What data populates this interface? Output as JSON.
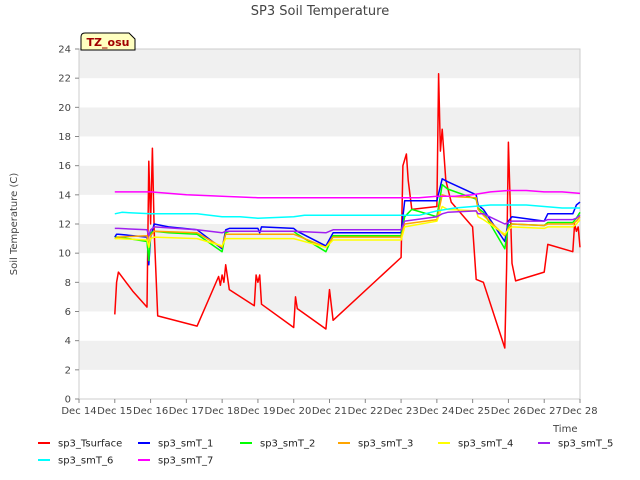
{
  "chart_data": {
    "type": "line",
    "title": "SP3 Soil Temperature",
    "ylabel": "Soil Temperature (C)",
    "xlabel": "Time",
    "badge": "TZ_osu",
    "ylim": [
      0,
      24
    ],
    "yticks": [
      0,
      2,
      4,
      6,
      8,
      10,
      12,
      14,
      16,
      18,
      20,
      22,
      24
    ],
    "xlim": [
      14,
      28
    ],
    "xticks": [
      {
        "v": 14,
        "label": "Dec 14"
      },
      {
        "v": 15,
        "label": "Dec 15"
      },
      {
        "v": 16,
        "label": "Dec 16"
      },
      {
        "v": 17,
        "label": "Dec 17"
      },
      {
        "v": 18,
        "label": "Dec 18"
      },
      {
        "v": 19,
        "label": "Dec 19"
      },
      {
        "v": 20,
        "label": "Dec 20"
      },
      {
        "v": 21,
        "label": "Dec 21"
      },
      {
        "v": 22,
        "label": "Dec 22"
      },
      {
        "v": 23,
        "label": "Dec 23"
      },
      {
        "v": 24,
        "label": "Dec 24"
      },
      {
        "v": 25,
        "label": "Dec 25"
      },
      {
        "v": 26,
        "label": "Dec 26"
      },
      {
        "v": 27,
        "label": "Dec 27"
      },
      {
        "v": 28,
        "label": "Dec 28"
      }
    ],
    "grid": "horizontal bands",
    "legend_position": "bottom",
    "series": [
      {
        "name": "sp3_Tsurface",
        "color": "#ff0000",
        "points": [
          [
            15.0,
            5.8
          ],
          [
            15.05,
            8.0
          ],
          [
            15.1,
            8.7
          ],
          [
            15.5,
            7.4
          ],
          [
            15.9,
            6.3
          ],
          [
            15.95,
            16.3
          ],
          [
            16.0,
            12.0
          ],
          [
            16.05,
            17.2
          ],
          [
            16.1,
            11.5
          ],
          [
            16.2,
            5.7
          ],
          [
            17.3,
            5.0
          ],
          [
            17.9,
            8.4
          ],
          [
            17.95,
            7.8
          ],
          [
            18.0,
            8.5
          ],
          [
            18.05,
            8.0
          ],
          [
            18.1,
            9.2
          ],
          [
            18.2,
            7.5
          ],
          [
            18.9,
            6.4
          ],
          [
            18.95,
            8.5
          ],
          [
            19.0,
            8.0
          ],
          [
            19.05,
            8.5
          ],
          [
            19.1,
            6.5
          ],
          [
            20.0,
            4.9
          ],
          [
            20.05,
            7.0
          ],
          [
            20.1,
            6.2
          ],
          [
            20.9,
            4.8
          ],
          [
            21.0,
            7.5
          ],
          [
            21.1,
            5.4
          ],
          [
            23.0,
            9.7
          ],
          [
            23.05,
            16.0
          ],
          [
            23.15,
            16.8
          ],
          [
            23.2,
            15.0
          ],
          [
            23.3,
            13.0
          ],
          [
            24.0,
            13.2
          ],
          [
            24.05,
            22.3
          ],
          [
            24.1,
            17.0
          ],
          [
            24.15,
            18.5
          ],
          [
            24.25,
            15.0
          ],
          [
            24.4,
            13.5
          ],
          [
            25.0,
            11.8
          ],
          [
            25.1,
            8.2
          ],
          [
            25.3,
            8.0
          ],
          [
            25.9,
            3.5
          ],
          [
            25.95,
            9.0
          ],
          [
            26.0,
            17.6
          ],
          [
            26.1,
            9.3
          ],
          [
            26.2,
            8.1
          ],
          [
            27.0,
            8.7
          ],
          [
            27.1,
            10.6
          ],
          [
            27.8,
            10.1
          ],
          [
            27.85,
            12.0
          ],
          [
            27.9,
            11.5
          ],
          [
            27.95,
            11.8
          ],
          [
            28.0,
            10.4
          ]
        ]
      },
      {
        "name": "sp3_smT_1",
        "color": "#0000ff",
        "points": [
          [
            15.0,
            11.1
          ],
          [
            15.05,
            11.3
          ],
          [
            15.1,
            11.3
          ],
          [
            15.9,
            11.1
          ],
          [
            15.95,
            9.2
          ],
          [
            16.0,
            11.1
          ],
          [
            16.1,
            12.0
          ],
          [
            16.5,
            11.8
          ],
          [
            17.3,
            11.6
          ],
          [
            18.0,
            10.3
          ],
          [
            18.1,
            11.6
          ],
          [
            18.2,
            11.7
          ],
          [
            19.0,
            11.7
          ],
          [
            19.05,
            11.4
          ],
          [
            19.1,
            11.8
          ],
          [
            20.0,
            11.7
          ],
          [
            20.1,
            11.5
          ],
          [
            20.9,
            10.5
          ],
          [
            21.1,
            11.4
          ],
          [
            23.0,
            11.4
          ],
          [
            23.1,
            13.6
          ],
          [
            24.0,
            13.6
          ],
          [
            24.15,
            15.1
          ],
          [
            24.3,
            14.9
          ],
          [
            25.1,
            14.0
          ],
          [
            25.15,
            13.3
          ],
          [
            25.3,
            13.0
          ],
          [
            25.9,
            10.8
          ],
          [
            26.0,
            12.2
          ],
          [
            26.1,
            12.5
          ],
          [
            27.0,
            12.2
          ],
          [
            27.1,
            12.7
          ],
          [
            27.8,
            12.7
          ],
          [
            27.9,
            13.3
          ],
          [
            28.0,
            13.5
          ]
        ]
      },
      {
        "name": "sp3_smT_2",
        "color": "#00ff00",
        "points": [
          [
            15.0,
            11.0
          ],
          [
            15.05,
            11.1
          ],
          [
            15.1,
            11.1
          ],
          [
            15.9,
            10.8
          ],
          [
            15.95,
            9.5
          ],
          [
            16.0,
            11.4
          ],
          [
            16.1,
            11.5
          ],
          [
            16.5,
            11.4
          ],
          [
            17.3,
            11.3
          ],
          [
            18.0,
            10.1
          ],
          [
            18.1,
            11.4
          ],
          [
            18.2,
            11.5
          ],
          [
            19.0,
            11.5
          ],
          [
            19.1,
            11.5
          ],
          [
            20.0,
            11.5
          ],
          [
            20.1,
            11.3
          ],
          [
            20.9,
            10.1
          ],
          [
            21.1,
            11.2
          ],
          [
            23.0,
            11.2
          ],
          [
            23.1,
            12.5
          ],
          [
            23.3,
            13.0
          ],
          [
            24.0,
            12.5
          ],
          [
            24.15,
            14.7
          ],
          [
            24.3,
            14.4
          ],
          [
            25.1,
            13.7
          ],
          [
            25.15,
            13.1
          ],
          [
            25.3,
            12.8
          ],
          [
            25.9,
            10.3
          ],
          [
            26.0,
            11.9
          ],
          [
            26.1,
            12.0
          ],
          [
            27.0,
            11.9
          ],
          [
            27.1,
            12.1
          ],
          [
            27.8,
            12.1
          ],
          [
            27.9,
            12.4
          ],
          [
            28.0,
            12.8
          ]
        ]
      },
      {
        "name": "sp3_smT_3",
        "color": "#ffa500",
        "points": [
          [
            15.0,
            11.0
          ],
          [
            15.1,
            11.1
          ],
          [
            15.9,
            11.2
          ],
          [
            15.95,
            10.5
          ],
          [
            16.0,
            11.2
          ],
          [
            16.1,
            11.5
          ],
          [
            17.3,
            11.4
          ],
          [
            18.0,
            10.4
          ],
          [
            18.1,
            11.3
          ],
          [
            19.0,
            11.3
          ],
          [
            19.1,
            11.3
          ],
          [
            20.0,
            11.3
          ],
          [
            20.9,
            10.4
          ],
          [
            21.1,
            11.1
          ],
          [
            23.0,
            11.1
          ],
          [
            23.1,
            12.0
          ],
          [
            24.0,
            12.3
          ],
          [
            24.15,
            14.0
          ],
          [
            24.3,
            13.9
          ],
          [
            25.1,
            13.8
          ],
          [
            25.15,
            13.0
          ],
          [
            25.3,
            12.6
          ],
          [
            25.9,
            11.2
          ],
          [
            26.0,
            11.7
          ],
          [
            26.1,
            12.0
          ],
          [
            27.0,
            11.9
          ],
          [
            27.1,
            12.0
          ],
          [
            27.8,
            12.0
          ],
          [
            27.9,
            12.2
          ],
          [
            28.0,
            12.5
          ]
        ]
      },
      {
        "name": "sp3_smT_4",
        "color": "#ffff00",
        "points": [
          [
            15.0,
            11.0
          ],
          [
            15.1,
            11.0
          ],
          [
            15.9,
            10.9
          ],
          [
            15.95,
            10.4
          ],
          [
            16.0,
            11.0
          ],
          [
            16.1,
            11.1
          ],
          [
            17.3,
            11.0
          ],
          [
            18.0,
            10.5
          ],
          [
            18.1,
            11.0
          ],
          [
            19.0,
            11.0
          ],
          [
            19.1,
            11.0
          ],
          [
            20.0,
            11.0
          ],
          [
            20.9,
            10.4
          ],
          [
            21.1,
            10.9
          ],
          [
            23.0,
            10.9
          ],
          [
            23.1,
            11.8
          ],
          [
            24.0,
            12.2
          ],
          [
            24.15,
            13.2
          ],
          [
            24.3,
            13.0
          ],
          [
            25.1,
            12.9
          ],
          [
            25.15,
            12.5
          ],
          [
            25.3,
            12.3
          ],
          [
            25.9,
            11.3
          ],
          [
            26.0,
            11.6
          ],
          [
            26.1,
            11.8
          ],
          [
            27.0,
            11.7
          ],
          [
            27.1,
            11.8
          ],
          [
            27.8,
            11.8
          ],
          [
            27.9,
            12.0
          ],
          [
            28.0,
            12.3
          ]
        ]
      },
      {
        "name": "sp3_smT_5",
        "color": "#a020f0",
        "points": [
          [
            15.0,
            11.7
          ],
          [
            15.1,
            11.7
          ],
          [
            15.9,
            11.6
          ],
          [
            15.95,
            11.2
          ],
          [
            16.0,
            11.6
          ],
          [
            16.1,
            11.8
          ],
          [
            17.3,
            11.6
          ],
          [
            18.0,
            11.4
          ],
          [
            18.1,
            11.5
          ],
          [
            19.0,
            11.5
          ],
          [
            19.1,
            11.5
          ],
          [
            20.0,
            11.5
          ],
          [
            20.9,
            11.4
          ],
          [
            21.1,
            11.6
          ],
          [
            23.0,
            11.6
          ],
          [
            23.1,
            12.2
          ],
          [
            24.0,
            12.5
          ],
          [
            24.15,
            12.7
          ],
          [
            24.3,
            12.8
          ],
          [
            25.1,
            12.9
          ],
          [
            25.15,
            12.7
          ],
          [
            25.3,
            12.7
          ],
          [
            25.9,
            12.0
          ],
          [
            26.0,
            12.1
          ],
          [
            26.1,
            12.2
          ],
          [
            27.0,
            12.2
          ],
          [
            27.1,
            12.3
          ],
          [
            27.8,
            12.3
          ],
          [
            27.9,
            12.4
          ],
          [
            28.0,
            12.6
          ]
        ]
      },
      {
        "name": "sp3_smT_6",
        "color": "#00ffff",
        "points": [
          [
            15.0,
            12.7
          ],
          [
            15.2,
            12.8
          ],
          [
            16.0,
            12.7
          ],
          [
            16.5,
            12.7
          ],
          [
            17.3,
            12.7
          ],
          [
            18.0,
            12.5
          ],
          [
            18.5,
            12.5
          ],
          [
            19.0,
            12.4
          ],
          [
            20.0,
            12.5
          ],
          [
            20.3,
            12.6
          ],
          [
            21.0,
            12.6
          ],
          [
            22.0,
            12.6
          ],
          [
            23.0,
            12.6
          ],
          [
            23.5,
            12.6
          ],
          [
            24.0,
            12.9
          ],
          [
            24.5,
            13.1
          ],
          [
            25.0,
            13.2
          ],
          [
            25.5,
            13.3
          ],
          [
            26.0,
            13.3
          ],
          [
            26.5,
            13.3
          ],
          [
            27.0,
            13.2
          ],
          [
            27.5,
            13.1
          ],
          [
            28.0,
            13.1
          ]
        ]
      },
      {
        "name": "sp3_smT_7",
        "color": "#ff00ff",
        "points": [
          [
            15.0,
            14.2
          ],
          [
            16.0,
            14.2
          ],
          [
            17.0,
            14.0
          ],
          [
            18.0,
            13.9
          ],
          [
            19.0,
            13.8
          ],
          [
            20.0,
            13.8
          ],
          [
            21.0,
            13.8
          ],
          [
            22.0,
            13.8
          ],
          [
            23.0,
            13.8
          ],
          [
            23.5,
            13.8
          ],
          [
            24.0,
            13.9
          ],
          [
            24.5,
            13.9
          ],
          [
            25.0,
            14.0
          ],
          [
            25.5,
            14.2
          ],
          [
            26.0,
            14.3
          ],
          [
            26.5,
            14.3
          ],
          [
            27.0,
            14.2
          ],
          [
            27.5,
            14.2
          ],
          [
            28.0,
            14.1
          ]
        ]
      }
    ]
  }
}
